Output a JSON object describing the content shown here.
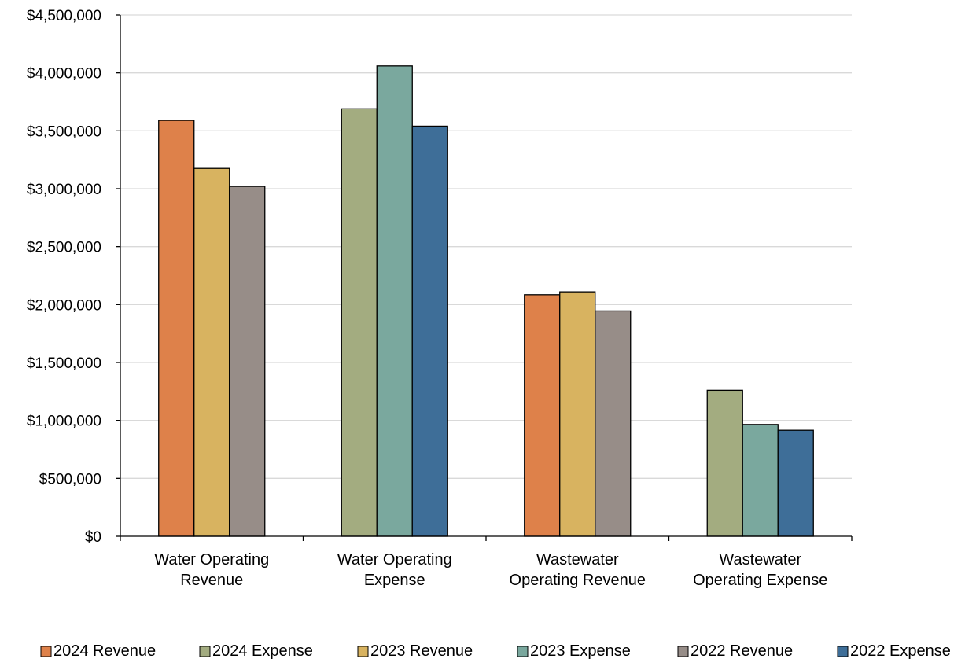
{
  "chart_data": {
    "type": "bar",
    "title": "",
    "xlabel": "",
    "ylabel": "",
    "ylim": [
      0,
      4500000
    ],
    "yticks": [
      0,
      500000,
      1000000,
      1500000,
      2000000,
      2500000,
      3000000,
      3500000,
      4000000,
      4500000
    ],
    "ytick_labels": [
      "$0",
      "$500,000",
      "$1,000,000",
      "$1,500,000",
      "$2,000,000",
      "$2,500,000",
      "$3,000,000",
      "$3,500,000",
      "$4,000,000",
      "$4,500,000"
    ],
    "grid": true,
    "legend_position": "bottom",
    "categories": [
      [
        "Water Operating",
        "Revenue"
      ],
      [
        "Water Operating",
        "Expense"
      ],
      [
        "Wastewater",
        "Operating Revenue"
      ],
      [
        "Wastewater",
        "Operating Expense"
      ]
    ],
    "series": [
      {
        "name": "2024 Revenue",
        "color": "#DE814A",
        "values": [
          3590000,
          null,
          2085000,
          null
        ]
      },
      {
        "name": "2024 Expense",
        "color": "#A3AC80",
        "values": [
          null,
          3690000,
          null,
          1260000
        ]
      },
      {
        "name": "2023 Revenue",
        "color": "#D8B360",
        "values": [
          3175000,
          null,
          2110000,
          null
        ]
      },
      {
        "name": "2023 Expense",
        "color": "#7AA89E",
        "values": [
          null,
          4060000,
          null,
          965000
        ]
      },
      {
        "name": "2022 Revenue",
        "color": "#978D88",
        "values": [
          3020000,
          null,
          1945000,
          null
        ]
      },
      {
        "name": "2022 Expense",
        "color": "#3E6E98",
        "values": [
          null,
          3540000,
          null,
          915000
        ]
      }
    ]
  }
}
